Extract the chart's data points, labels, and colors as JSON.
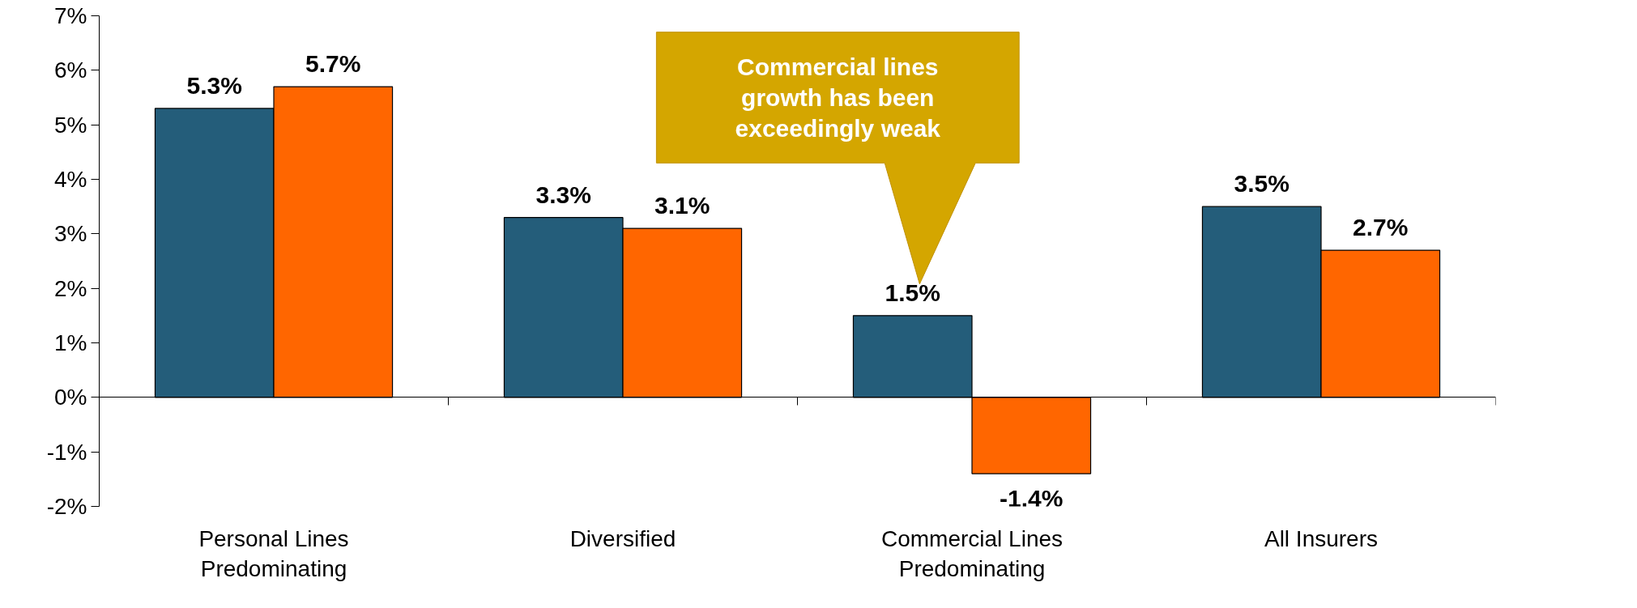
{
  "chart_data": {
    "type": "bar",
    "categories": [
      "Personal Lines\nPredominating",
      "Diversified",
      "Commercial Lines\nPredominating",
      "All Insurers"
    ],
    "series": [
      {
        "color": "#245d7a",
        "values": [
          5.3,
          3.3,
          1.5,
          3.5
        ],
        "value_labels": [
          "5.3%",
          "3.3%",
          "1.5%",
          "3.5%"
        ]
      },
      {
        "color": "#ff6600",
        "values": [
          5.7,
          3.1,
          -1.4,
          2.7
        ],
        "value_labels": [
          "5.7%",
          "3.1%",
          "-1.4%",
          "2.7%"
        ]
      }
    ],
    "ylim": [
      -2,
      7
    ],
    "yticks": [
      {
        "value": -2,
        "label": "-2%"
      },
      {
        "value": -1,
        "label": "-1%"
      },
      {
        "value": 0,
        "label": "0%"
      },
      {
        "value": 1,
        "label": "1%"
      },
      {
        "value": 2,
        "label": "2%"
      },
      {
        "value": 3,
        "label": "3%"
      },
      {
        "value": 4,
        "label": "4%"
      },
      {
        "value": 5,
        "label": "5%"
      },
      {
        "value": 6,
        "label": "6%"
      },
      {
        "value": 7,
        "label": "7%"
      }
    ],
    "annotations": [
      "Commercial lines\ngrowth has been\nexceedingly weak"
    ]
  }
}
